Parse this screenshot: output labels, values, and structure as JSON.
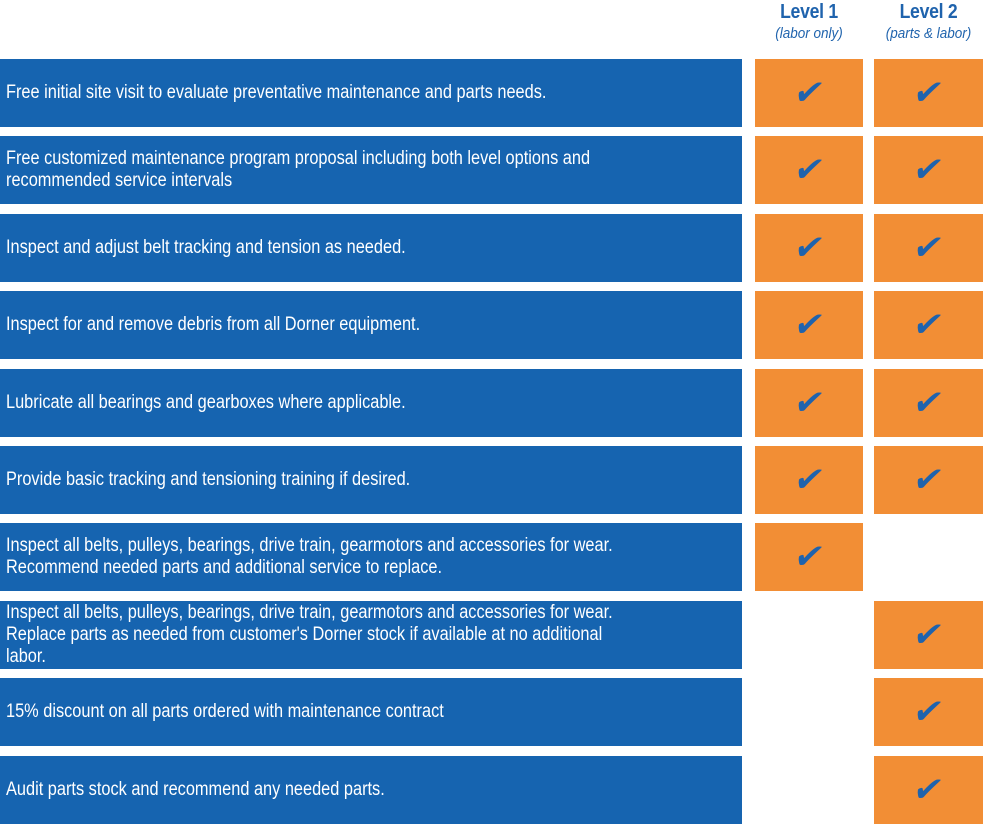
{
  "columns": [
    {
      "level": "Level 1",
      "subtitle": "(labor only)"
    },
    {
      "level": "Level 2",
      "subtitle": "(parts & labor)"
    }
  ],
  "check_glyph": "✔",
  "colors": {
    "row_blue": "#1664b0",
    "cell_orange": "#f28e35",
    "header_blue": "#1f63ad",
    "check_blue": "#1f63ad"
  },
  "rows": [
    {
      "text": "Free initial site visit to evaluate preventative maintenance and parts needs.",
      "level1": true,
      "level2": true
    },
    {
      "text": "Free customized maintenance program proposal including both level options and\nrecommended service intervals",
      "level1": true,
      "level2": true
    },
    {
      "text": "Inspect and adjust belt tracking and tension as needed.",
      "level1": true,
      "level2": true
    },
    {
      "text": "Inspect for and remove debris from all Dorner equipment.",
      "level1": true,
      "level2": true
    },
    {
      "text": "Lubricate all bearings and gearboxes where applicable.",
      "level1": true,
      "level2": true
    },
    {
      "text": "Provide basic tracking and tensioning training if desired.",
      "level1": true,
      "level2": true
    },
    {
      "text": "Inspect all belts, pulleys, bearings, drive train, gearmotors and accessories for wear.\nRecommend needed parts and additional service to replace.",
      "level1": true,
      "level2": false
    },
    {
      "text": "Inspect all belts, pulleys, bearings, drive train, gearmotors and accessories for wear.\nReplace parts as needed from customer's  Dorner stock if available at no additional labor.",
      "level1": false,
      "level2": true
    },
    {
      "text": "15% discount on all parts ordered with maintenance contract",
      "level1": false,
      "level2": true
    },
    {
      "text": "Audit parts stock and recommend any needed parts.",
      "level1": false,
      "level2": true
    }
  ]
}
